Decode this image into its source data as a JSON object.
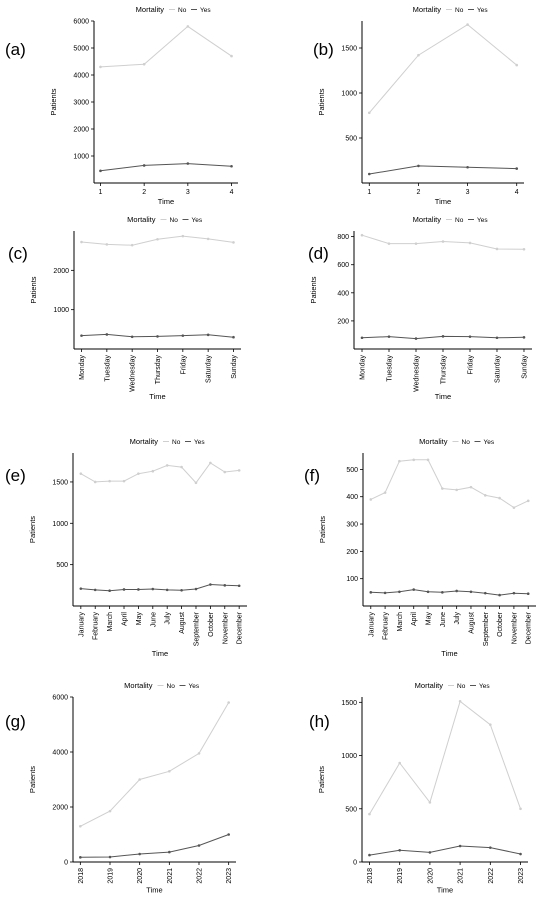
{
  "legend": {
    "title": "Mortality",
    "no_label": "No",
    "yes_label": "Yes",
    "no_color": "#cfcfcf",
    "yes_color": "#555555"
  },
  "axis_labels": {
    "x": "Time",
    "y": "Patients"
  },
  "chart_data": [
    {
      "panel": "(a)",
      "type": "line",
      "categories": [
        "1",
        "2",
        "3",
        "4"
      ],
      "ylim": [
        0,
        6000
      ],
      "yticks": [
        1000,
        2000,
        3000,
        4000,
        5000,
        6000
      ],
      "ytick_labels": [
        "1000",
        "2000",
        "3000",
        "4000",
        "5000",
        "6000"
      ],
      "series": [
        {
          "name": "No",
          "values": [
            4300,
            4400,
            5800,
            4700
          ]
        },
        {
          "name": "Yes",
          "values": [
            450,
            650,
            720,
            620
          ]
        }
      ]
    },
    {
      "panel": "(b)",
      "type": "line",
      "categories": [
        "1",
        "2",
        "3",
        "4"
      ],
      "ylim": [
        0,
        1800
      ],
      "yticks": [
        500,
        1000,
        1500
      ],
      "ytick_labels": [
        "500",
        "1000",
        "1500"
      ],
      "series": [
        {
          "name": "No",
          "values": [
            780,
            1420,
            1760,
            1310
          ]
        },
        {
          "name": "Yes",
          "values": [
            100,
            190,
            175,
            160
          ]
        }
      ]
    },
    {
      "panel": "(c)",
      "type": "line",
      "categories": [
        "Monday",
        "Tuesday",
        "Wednesday",
        "Thursday",
        "Friday",
        "Saturday",
        "Sunday"
      ],
      "ylim": [
        0,
        3000
      ],
      "yticks": [
        1000,
        2000
      ],
      "ytick_labels": [
        "1000",
        "2000"
      ],
      "series": [
        {
          "name": "No",
          "values": [
            2720,
            2660,
            2640,
            2790,
            2870,
            2800,
            2710
          ]
        },
        {
          "name": "Yes",
          "values": [
            340,
            370,
            310,
            320,
            340,
            360,
            300
          ]
        }
      ]
    },
    {
      "panel": "(d)",
      "type": "line",
      "categories": [
        "Monday",
        "Tuesday",
        "Wednesday",
        "Thursday",
        "Friday",
        "Saturday",
        "Sunday"
      ],
      "ylim": [
        0,
        840
      ],
      "yticks": [
        200,
        400,
        600,
        800
      ],
      "ytick_labels": [
        "200",
        "400",
        "600",
        "800"
      ],
      "series": [
        {
          "name": "No",
          "values": [
            810,
            750,
            750,
            765,
            755,
            712,
            710
          ]
        },
        {
          "name": "Yes",
          "values": [
            80,
            88,
            74,
            90,
            88,
            80,
            83
          ]
        }
      ]
    },
    {
      "panel": "(e)",
      "type": "line",
      "categories": [
        "January",
        "February",
        "March",
        "April",
        "May",
        "June",
        "July",
        "August",
        "September",
        "October",
        "November",
        "December"
      ],
      "ylim": [
        0,
        1850
      ],
      "yticks": [
        500,
        1000,
        1500
      ],
      "ytick_labels": [
        "500",
        "1000",
        "1500"
      ],
      "series": [
        {
          "name": "No",
          "values": [
            1600,
            1500,
            1510,
            1510,
            1600,
            1630,
            1700,
            1680,
            1490,
            1730,
            1620,
            1640
          ]
        },
        {
          "name": "Yes",
          "values": [
            210,
            195,
            185,
            200,
            200,
            205,
            195,
            190,
            205,
            260,
            250,
            245
          ]
        }
      ]
    },
    {
      "panel": "(f)",
      "type": "line",
      "categories": [
        "January",
        "February",
        "March",
        "April",
        "May",
        "June",
        "July",
        "August",
        "September",
        "October",
        "November",
        "December"
      ],
      "ylim": [
        0,
        560
      ],
      "yticks": [
        100,
        200,
        300,
        400,
        500
      ],
      "ytick_labels": [
        "100",
        "200",
        "300",
        "400",
        "500"
      ],
      "series": [
        {
          "name": "No",
          "values": [
            390,
            415,
            530,
            535,
            535,
            430,
            425,
            435,
            405,
            395,
            360,
            385
          ]
        },
        {
          "name": "Yes",
          "values": [
            50,
            48,
            52,
            60,
            52,
            50,
            55,
            52,
            47,
            40,
            47,
            45
          ]
        }
      ]
    },
    {
      "panel": "(g)",
      "type": "line",
      "categories": [
        "2018",
        "2019",
        "2020",
        "2021",
        "2022",
        "2023"
      ],
      "ylim": [
        0,
        6000
      ],
      "yticks": [
        0,
        2000,
        4000,
        6000
      ],
      "ytick_labels": [
        "0",
        "2000",
        "4000",
        "6000"
      ],
      "series": [
        {
          "name": "No",
          "values": [
            1300,
            1850,
            3000,
            3300,
            3950,
            5800
          ]
        },
        {
          "name": "Yes",
          "values": [
            170,
            180,
            290,
            360,
            600,
            1000
          ]
        }
      ]
    },
    {
      "panel": "(h)",
      "type": "line",
      "categories": [
        "2018",
        "2019",
        "2020",
        "2021",
        "2022",
        "2023"
      ],
      "ylim": [
        0,
        1550
      ],
      "yticks": [
        0,
        500,
        1000,
        1500
      ],
      "ytick_labels": [
        "0",
        "500",
        "1000",
        "1500"
      ],
      "series": [
        {
          "name": "No",
          "values": [
            450,
            930,
            560,
            1510,
            1290,
            500
          ]
        },
        {
          "name": "Yes",
          "values": [
            65,
            110,
            90,
            150,
            135,
            75
          ]
        }
      ]
    }
  ]
}
